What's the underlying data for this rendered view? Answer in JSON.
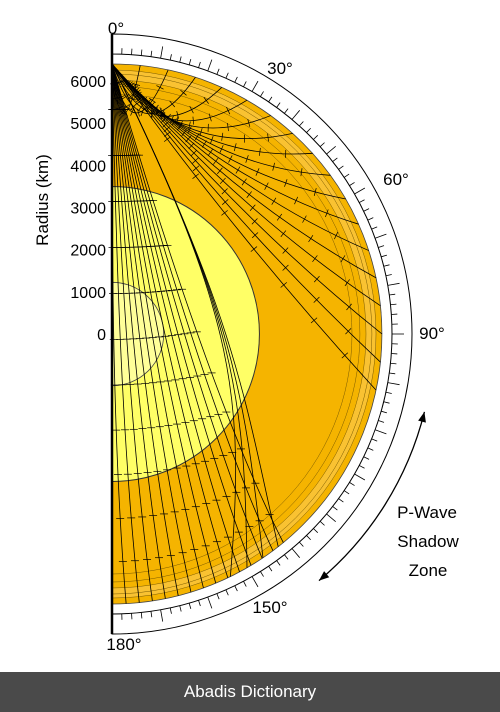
{
  "diagram": {
    "title": "",
    "radius_axis": {
      "label": "Radius (km)",
      "ticks": [
        "6000",
        "5000",
        "4000",
        "3000",
        "2000",
        "1000",
        "0"
      ],
      "tick_values_km": [
        6000,
        5000,
        4000,
        3000,
        2000,
        1000,
        0
      ]
    },
    "angle_labels": [
      {
        "text": "0°",
        "deg": 0
      },
      {
        "text": "30°",
        "deg": 30
      },
      {
        "text": "60°",
        "deg": 60
      },
      {
        "text": "90°",
        "deg": 90
      },
      {
        "text": "150°",
        "deg": 150
      },
      {
        "text": "180°",
        "deg": 180
      }
    ],
    "shadow_zone": {
      "lines": [
        "P-Wave",
        "Shadow",
        "Zone"
      ],
      "start_deg": 104,
      "end_deg": 140
    },
    "layers_km": {
      "earth_radius": 6371,
      "outer_core_radius": 3480,
      "inner_core_radius": 1220
    },
    "colors": {
      "mantle": "#f5b400",
      "mantle_light": "#f9c232",
      "outer_core": "#ffff66",
      "inner_core": "#ffff99",
      "scale_ring": "#ffffff",
      "ray": "#000000",
      "footer_bg": "#4a4a4a",
      "footer_text": "#ffffff"
    }
  },
  "footer": {
    "text": "Abadis Dictionary"
  }
}
